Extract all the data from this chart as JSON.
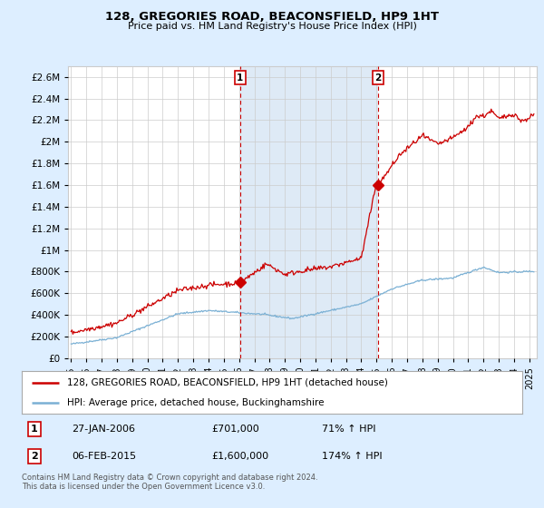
{
  "title": "128, GREGORIES ROAD, BEACONSFIELD, HP9 1HT",
  "subtitle": "Price paid vs. HM Land Registry's House Price Index (HPI)",
  "ylim": [
    0,
    2700000
  ],
  "ytick_values": [
    0,
    200000,
    400000,
    600000,
    800000,
    1000000,
    1200000,
    1400000,
    1600000,
    1800000,
    2000000,
    2200000,
    2400000,
    2600000
  ],
  "sale1_date": 2006.07,
  "sale1_price": 701000,
  "sale1_label": "1",
  "sale2_date": 2015.09,
  "sale2_price": 1600000,
  "sale2_label": "2",
  "legend_line1": "128, GREGORIES ROAD, BEACONSFIELD, HP9 1HT (detached house)",
  "legend_line2": "HPI: Average price, detached house, Buckinghamshire",
  "footer": "Contains HM Land Registry data © Crown copyright and database right 2024.\nThis data is licensed under the Open Government Licence v3.0.",
  "line_color_red": "#cc0000",
  "line_color_blue": "#7ab0d4",
  "vline_color": "#cc0000",
  "background_color": "#ddeeff",
  "shade_color": "#c8dcf0",
  "plot_bg": "#ffffff",
  "grid_color": "#cccccc",
  "xlim_start": 1994.8,
  "xlim_end": 2025.5,
  "xtick_years": [
    1995,
    1996,
    1997,
    1998,
    1999,
    2000,
    2001,
    2002,
    2003,
    2004,
    2005,
    2006,
    2007,
    2008,
    2009,
    2010,
    2011,
    2012,
    2013,
    2014,
    2015,
    2016,
    2017,
    2018,
    2019,
    2020,
    2021,
    2022,
    2023,
    2024,
    2025
  ]
}
